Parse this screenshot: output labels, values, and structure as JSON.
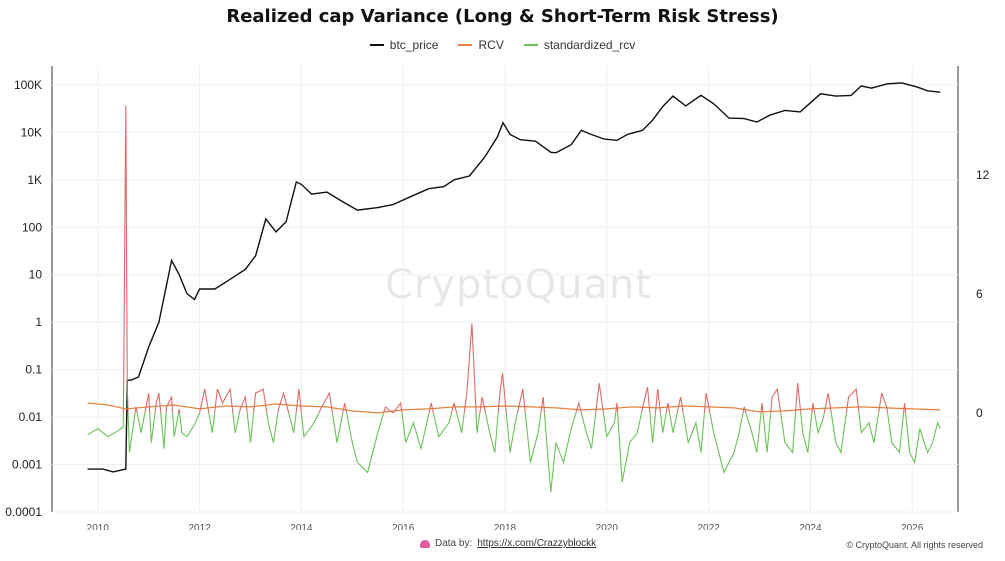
{
  "chart_data": {
    "type": "line",
    "title": "Realized cap Variance (Long & Short-Term Risk Stress)",
    "legend_position": "top-center",
    "grid": true,
    "x_axis": {
      "range": [
        2009.1,
        2026.9
      ],
      "ticks": [
        "2010",
        "2012",
        "2014",
        "2016",
        "2018",
        "2020",
        "2022",
        "2024",
        "2026"
      ]
    },
    "y_axis_left": {
      "scale": "log",
      "range": [
        0.0001,
        250000
      ],
      "ticks": [
        "100K",
        "10K",
        "1K",
        "100",
        "10",
        "1",
        "0.1",
        "0.01",
        "0.001",
        "0.0001"
      ]
    },
    "y_axis_right": {
      "scale": "linear",
      "range": [
        -5,
        17.5
      ],
      "ticks": [
        "12",
        "6",
        "0"
      ]
    },
    "series": [
      {
        "name": "btc_price",
        "axis": "left",
        "color": "#111111",
        "x": [
          2009.8,
          2010.1,
          2010.3,
          2010.55,
          2010.58,
          2010.65,
          2010.8,
          2011.0,
          2011.2,
          2011.45,
          2011.6,
          2011.75,
          2011.9,
          2012.0,
          2012.3,
          2012.6,
          2012.9,
          2013.1,
          2013.3,
          2013.5,
          2013.7,
          2013.9,
          2014.0,
          2014.2,
          2014.5,
          2014.8,
          2015.1,
          2015.5,
          2015.8,
          2016.1,
          2016.5,
          2016.8,
          2017.0,
          2017.3,
          2017.6,
          2017.85,
          2017.96,
          2018.1,
          2018.3,
          2018.6,
          2018.9,
          2019.0,
          2019.3,
          2019.5,
          2019.7,
          2019.95,
          2020.2,
          2020.4,
          2020.7,
          2020.9,
          2021.1,
          2021.3,
          2021.55,
          2021.85,
          2022.1,
          2022.4,
          2022.7,
          2022.95,
          2023.2,
          2023.5,
          2023.8,
          2024.0,
          2024.2,
          2024.5,
          2024.8,
          2025.0,
          2025.2,
          2025.5,
          2025.8,
          2026.1,
          2026.3,
          2026.55
        ],
        "y": [
          0.0008,
          0.0008,
          0.0007,
          0.0008,
          0.06,
          0.06,
          0.07,
          0.3,
          1,
          20,
          10,
          4,
          3,
          5,
          5,
          8,
          13,
          25,
          150,
          80,
          130,
          900,
          800,
          500,
          550,
          350,
          230,
          260,
          300,
          420,
          650,
          720,
          1000,
          1200,
          3000,
          8000,
          16000,
          9000,
          7000,
          6500,
          3800,
          3700,
          5500,
          11000,
          9000,
          7200,
          6800,
          9000,
          11000,
          18000,
          35000,
          58000,
          36000,
          60000,
          40000,
          20000,
          19500,
          16500,
          23000,
          29000,
          27000,
          42000,
          65000,
          58000,
          60000,
          95000,
          85000,
          105000,
          110000,
          90000,
          75000,
          70000
        ]
      },
      {
        "name": "RCV",
        "axis": "right",
        "color": "#e8823a",
        "x": [
          2009.8,
          2010.2,
          2010.55,
          2011.0,
          2011.5,
          2012.0,
          2012.5,
          2013.0,
          2013.5,
          2014.0,
          2014.5,
          2015.0,
          2015.5,
          2016.0,
          2016.5,
          2017.0,
          2017.5,
          2018.0,
          2018.5,
          2019.0,
          2019.5,
          2020.0,
          2020.5,
          2021.0,
          2021.5,
          2022.0,
          2022.5,
          2023.0,
          2023.5,
          2024.0,
          2024.5,
          2025.0,
          2025.5,
          2026.0,
          2026.55
        ],
        "y": [
          0.5,
          0.4,
          0.2,
          0.3,
          0.4,
          0.2,
          0.35,
          0.3,
          0.45,
          0.35,
          0.3,
          0.1,
          0.0,
          0.15,
          0.2,
          0.3,
          0.3,
          0.35,
          0.3,
          0.25,
          0.15,
          0.2,
          0.3,
          0.25,
          0.35,
          0.3,
          0.25,
          0.05,
          0.1,
          0.2,
          0.25,
          0.3,
          0.25,
          0.2,
          0.15
        ]
      },
      {
        "name": "standardized_rcv",
        "axis": "right",
        "color": "#6cc25a",
        "x": [
          2009.8,
          2010.0,
          2010.2,
          2010.4,
          2010.5,
          2010.55,
          2010.58,
          2010.62,
          2010.75,
          2010.85,
          2011.0,
          2011.05,
          2011.15,
          2011.2,
          2011.3,
          2011.35,
          2011.45,
          2011.5,
          2011.6,
          2011.65,
          2011.75,
          2011.9,
          2012.0,
          2012.1,
          2012.25,
          2012.35,
          2012.45,
          2012.6,
          2012.7,
          2012.8,
          2012.9,
          2013.0,
          2013.1,
          2013.25,
          2013.35,
          2013.45,
          2013.55,
          2013.65,
          2013.85,
          2013.95,
          2014.05,
          2014.25,
          2014.4,
          2014.55,
          2014.7,
          2014.85,
          2015.0,
          2015.1,
          2015.3,
          2015.5,
          2015.65,
          2015.8,
          2015.95,
          2016.05,
          2016.2,
          2016.35,
          2016.55,
          2016.7,
          2016.9,
          2017.0,
          2017.15,
          2017.25,
          2017.35,
          2017.45,
          2017.55,
          2017.7,
          2017.8,
          2017.9,
          2017.95,
          2018.1,
          2018.2,
          2018.35,
          2018.5,
          2018.65,
          2018.75,
          2018.85,
          2018.9,
          2019.0,
          2019.15,
          2019.3,
          2019.45,
          2019.6,
          2019.7,
          2019.85,
          2020.0,
          2020.15,
          2020.2,
          2020.3,
          2020.45,
          2020.6,
          2020.7,
          2020.8,
          2020.9,
          2021.0,
          2021.1,
          2021.2,
          2021.3,
          2021.45,
          2021.6,
          2021.75,
          2021.85,
          2021.95,
          2022.1,
          2022.3,
          2022.5,
          2022.6,
          2022.7,
          2022.85,
          2022.95,
          2023.05,
          2023.15,
          2023.25,
          2023.35,
          2023.5,
          2023.65,
          2023.75,
          2023.85,
          2023.95,
          2024.05,
          2024.15,
          2024.25,
          2024.35,
          2024.5,
          2024.6,
          2024.75,
          2024.9,
          2025.0,
          2025.15,
          2025.25,
          2025.4,
          2025.5,
          2025.6,
          2025.75,
          2025.85,
          2025.95,
          2026.05,
          2026.15,
          2026.3,
          2026.4,
          2026.5,
          2026.55
        ],
        "y": [
          -1.1,
          -0.8,
          -1.2,
          -0.9,
          -0.7,
          15.5,
          1.2,
          -2.0,
          0.3,
          -1.0,
          1.0,
          -1.5,
          0.5,
          1.0,
          -1.8,
          0.3,
          0.8,
          -1.2,
          0.2,
          -1.0,
          -1.2,
          -0.6,
          0.0,
          1.2,
          -1.0,
          1.2,
          0.5,
          1.2,
          -1.0,
          0.2,
          0.8,
          -1.5,
          1.0,
          1.2,
          -0.5,
          -1.5,
          0.2,
          1.0,
          -1.0,
          1.2,
          -1.2,
          -0.5,
          0.3,
          1.0,
          -1.5,
          0.5,
          -1.5,
          -2.5,
          -3.0,
          -1.0,
          0.3,
          0.0,
          0.5,
          -1.5,
          -0.5,
          -1.8,
          0.5,
          -1.2,
          -0.5,
          0.5,
          -1.0,
          1.0,
          4.5,
          -1.0,
          0.8,
          -1.0,
          -2.0,
          1.0,
          2.0,
          -2.0,
          -0.5,
          1.2,
          -2.5,
          -1.0,
          0.8,
          -2.5,
          -4.0,
          -1.5,
          -2.5,
          -0.8,
          0.5,
          -1.0,
          -1.8,
          1.5,
          -1.2,
          -0.5,
          0.5,
          -3.5,
          -1.5,
          -1.0,
          0.2,
          1.3,
          -1.5,
          1.2,
          -1.0,
          0.5,
          -1.0,
          0.8,
          -1.5,
          -0.5,
          -2.0,
          1.0,
          -1.0,
          -3.0,
          -2.0,
          -1.0,
          0.3,
          -1.0,
          -2.0,
          0.5,
          -2.0,
          0.8,
          1.2,
          -1.5,
          -2.0,
          1.5,
          -1.0,
          -2.0,
          0.5,
          -1.0,
          -0.3,
          1.0,
          -1.5,
          -2.0,
          0.8,
          1.2,
          -1.0,
          -0.5,
          -1.5,
          1.0,
          0.3,
          -1.5,
          -2.0,
          0.5,
          -2.0,
          -2.5,
          -0.8,
          -2.0,
          -1.5,
          -0.5,
          -0.8
        ]
      }
    ]
  },
  "watermark": "CryptoQuant",
  "footer": {
    "data_by": "Data by:",
    "link": "https://x.com/Crazzyblockk",
    "copyright": "© CryptoQuant. All rights reserved"
  }
}
